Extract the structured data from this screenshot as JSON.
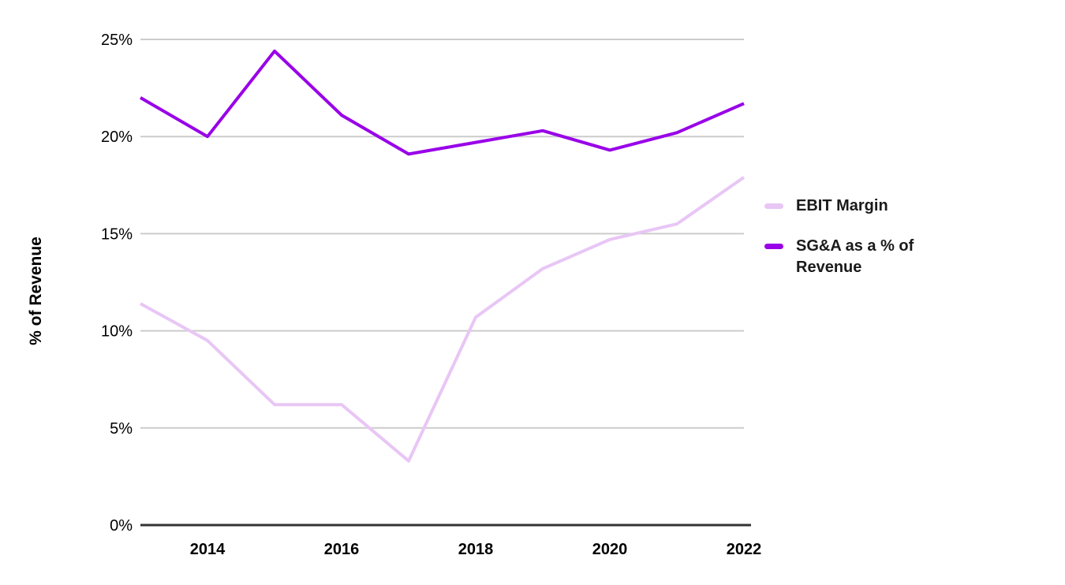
{
  "chart_data": {
    "type": "line",
    "x": [
      2013,
      2014,
      2015,
      2016,
      2017,
      2018,
      2019,
      2020,
      2021,
      2022
    ],
    "series": [
      {
        "name": "EBIT Margin",
        "color": "#e8c6f5",
        "values": [
          11.4,
          9.5,
          6.2,
          6.2,
          3.3,
          10.7,
          13.2,
          14.7,
          15.5,
          17.9
        ]
      },
      {
        "name": "SG&A as a % of Revenue",
        "color": "#9900e8",
        "values": [
          22.0,
          20.0,
          24.4,
          21.1,
          19.1,
          19.7,
          20.3,
          19.3,
          20.2,
          21.7
        ]
      }
    ],
    "ylabel": "% of Revenue",
    "ylim": [
      0,
      25
    ],
    "ytick_values": [
      0,
      5,
      10,
      15,
      20,
      25
    ],
    "ytick_labels": [
      "0%",
      "5%",
      "10%",
      "15%",
      "20%",
      "25%"
    ],
    "xticks": [
      2014,
      2016,
      2018,
      2020,
      2022
    ],
    "xtick_labels": [
      "2014",
      "2016",
      "2018",
      "2020",
      "2022"
    ],
    "grid": true,
    "legend_position": "right",
    "colors": {
      "grid": "#cccccc",
      "axis": "#333333",
      "tick_text": "#000000",
      "legend_text": "#1a1a1a",
      "background": "#ffffff"
    }
  }
}
